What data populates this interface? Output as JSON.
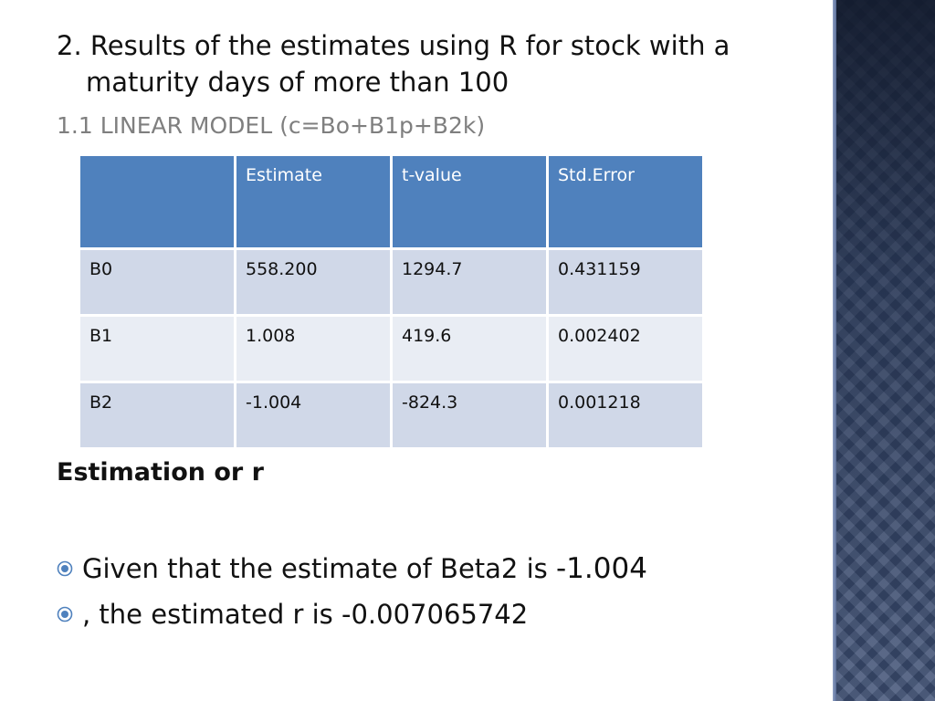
{
  "slide": {
    "heading": "2. Results of the estimates using R for stock with a maturity days of more than 100",
    "subheading_upper": "1.1 Linear model ",
    "subheading_formula": "(c=Bo+B1p+B2k)"
  },
  "table": {
    "headers": [
      "",
      "Estimate",
      "t-value",
      "Std.Error"
    ],
    "rows": [
      [
        "B0",
        "558.200",
        "1294.7",
        "0.431159"
      ],
      [
        "B1",
        "1.008",
        "419.6",
        "0.002402"
      ],
      [
        "B2",
        "-1.004",
        "-824.3",
        "0.001218"
      ]
    ],
    "colors": {
      "header_bg": "#4f81bd",
      "row_band_1": "#d0d8e8",
      "row_band_2": "#e9edf4"
    }
  },
  "section": {
    "title": "Estimation or r"
  },
  "bullets": [
    {
      "icon": "radio-bullet-icon",
      "text": "Given that the estimate of Beta2 is ",
      "value": "-1.004"
    },
    {
      "icon": "radio-bullet-icon",
      "text": ", the estimated r is  -0.007065742",
      "value": ""
    }
  ],
  "colors": {
    "accent": "#4f81bd",
    "subheading": "#7f7f7f",
    "side_panel": "#3c4d6f"
  }
}
